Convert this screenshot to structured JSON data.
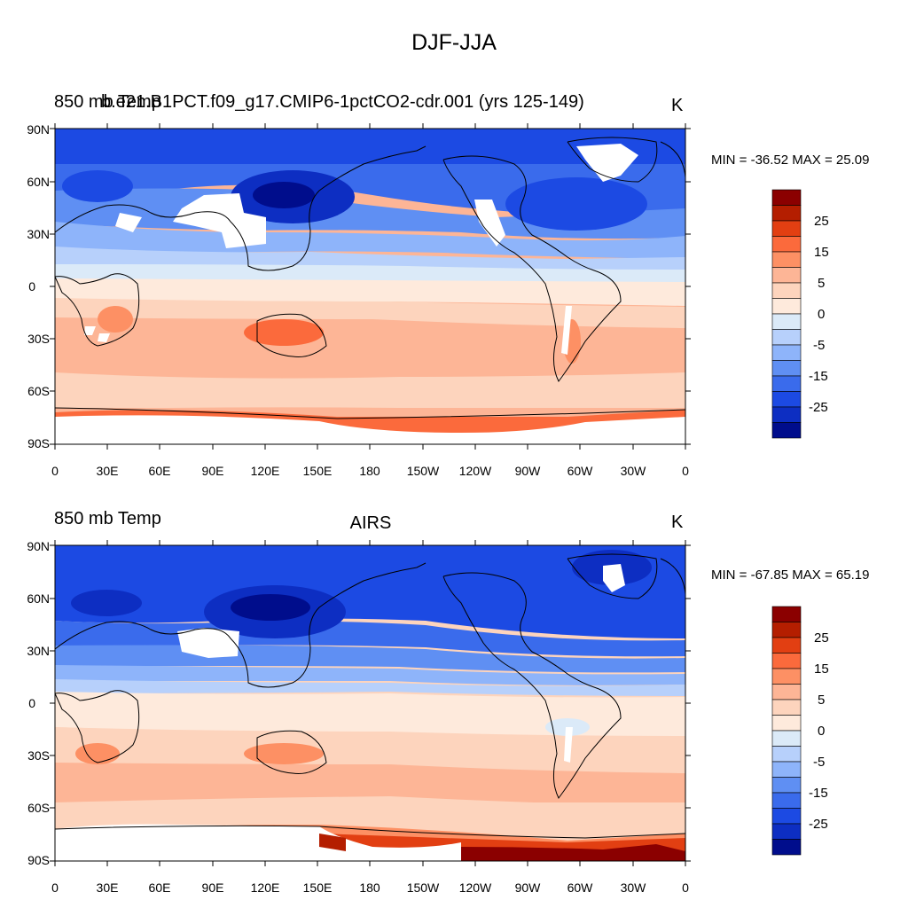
{
  "figure": {
    "title": "DJF-JJA",
    "unit": "K",
    "lat_ticks": [
      "90N",
      "60N",
      "30N",
      "0",
      "30S",
      "60S",
      "90S"
    ],
    "lon_ticks": [
      "0",
      "30E",
      "60E",
      "90E",
      "120E",
      "150E",
      "180",
      "150W",
      "120W",
      "90W",
      "60W",
      "30W",
      "0"
    ],
    "colorbar": {
      "labels": [
        "25",
        "15",
        "5",
        "0",
        "-5",
        "-15",
        "-25"
      ],
      "colors": [
        "#8b0000",
        "#b41e00",
        "#e23f12",
        "#fb6a3c",
        "#fd9064",
        "#fdb596",
        "#fdd4bd",
        "#feeadc",
        "#dbeaf8",
        "#b7d0fb",
        "#8eb4fa",
        "#5f8ff3",
        "#3a6bec",
        "#1c4ae3",
        "#0d2ec2",
        "#000d8c"
      ]
    }
  },
  "panels": [
    {
      "title_left": "850 mb Temp",
      "title_left_overlap": "b.e21.B1PCT.f09_g17.CMIP6-1pctCO2-cdr.001 (yrs 125-149)",
      "title_center": "",
      "minmax": "MIN = -36.52 MAX =  25.09"
    },
    {
      "title_left": "850 mb Temp",
      "title_center": "AIRS",
      "minmax": "MIN = -67.85 MAX =  65.19"
    }
  ]
}
